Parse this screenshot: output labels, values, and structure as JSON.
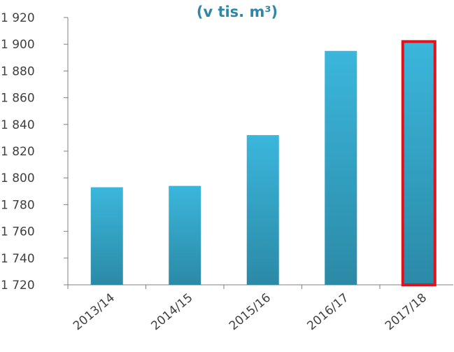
{
  "chart_data": {
    "type": "bar",
    "title": "(v tis. m³)",
    "categories": [
      "2013/14",
      "2014/15",
      "2015/16",
      "2016/17",
      "2017/18"
    ],
    "values": [
      1793,
      1794,
      1832,
      1895,
      1902
    ],
    "ylim": [
      1720,
      1920
    ],
    "yticks": [
      1720,
      1740,
      1760,
      1780,
      1800,
      1820,
      1840,
      1860,
      1880,
      1900,
      1920
    ],
    "ytick_labels": [
      "1 720",
      "1 740",
      "1 760",
      "1 780",
      "1 800",
      "1 820",
      "1 840",
      "1 860",
      "1 880",
      "1 900",
      "1 920"
    ],
    "highlighted_category": "2017/18",
    "xlabel": "",
    "ylabel": "",
    "grid": false,
    "legend": "none",
    "colors": {
      "bar_top": "#3bb6dc",
      "bar_bottom": "#2b8aa6",
      "highlight_border": "#e0121b",
      "title": "#2f86a5",
      "axis": "#808080",
      "text": "#404040"
    }
  }
}
